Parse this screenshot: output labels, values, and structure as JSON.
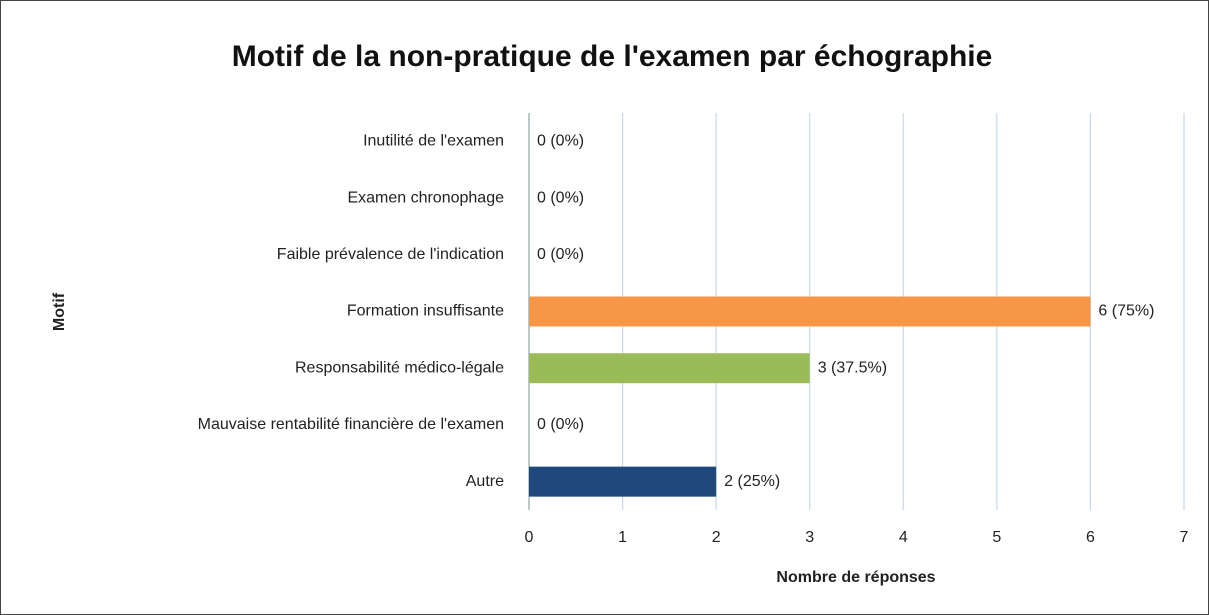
{
  "chart_data": {
    "type": "bar",
    "orientation": "horizontal",
    "title": "Motif de la non-pratique de l'examen par échographie",
    "xlabel": "Nombre de réponses",
    "ylabel": "Motif",
    "categories": [
      "Inutilité de l'examen",
      "Examen chronophage",
      "Faible prévalence de l'indication",
      "Formation insuffisante",
      "Responsabilité médico-légale",
      "Mauvaise rentabilité financière de l'examen",
      "Autre"
    ],
    "values": [
      0,
      0,
      0,
      6,
      3,
      0,
      2
    ],
    "value_labels": [
      "0 (0%)",
      "0 (0%)",
      "0 (0%)",
      "6 (75%)",
      "3 (37.5%)",
      "0 (0%)",
      "2 (25%)"
    ],
    "colors": [
      null,
      null,
      null,
      "#f79646",
      "#9bbb59",
      null,
      "#1f497d"
    ],
    "xlim": [
      0,
      7
    ],
    "xticks": [
      0,
      1,
      2,
      3,
      4,
      5,
      6,
      7
    ],
    "grid": true
  }
}
